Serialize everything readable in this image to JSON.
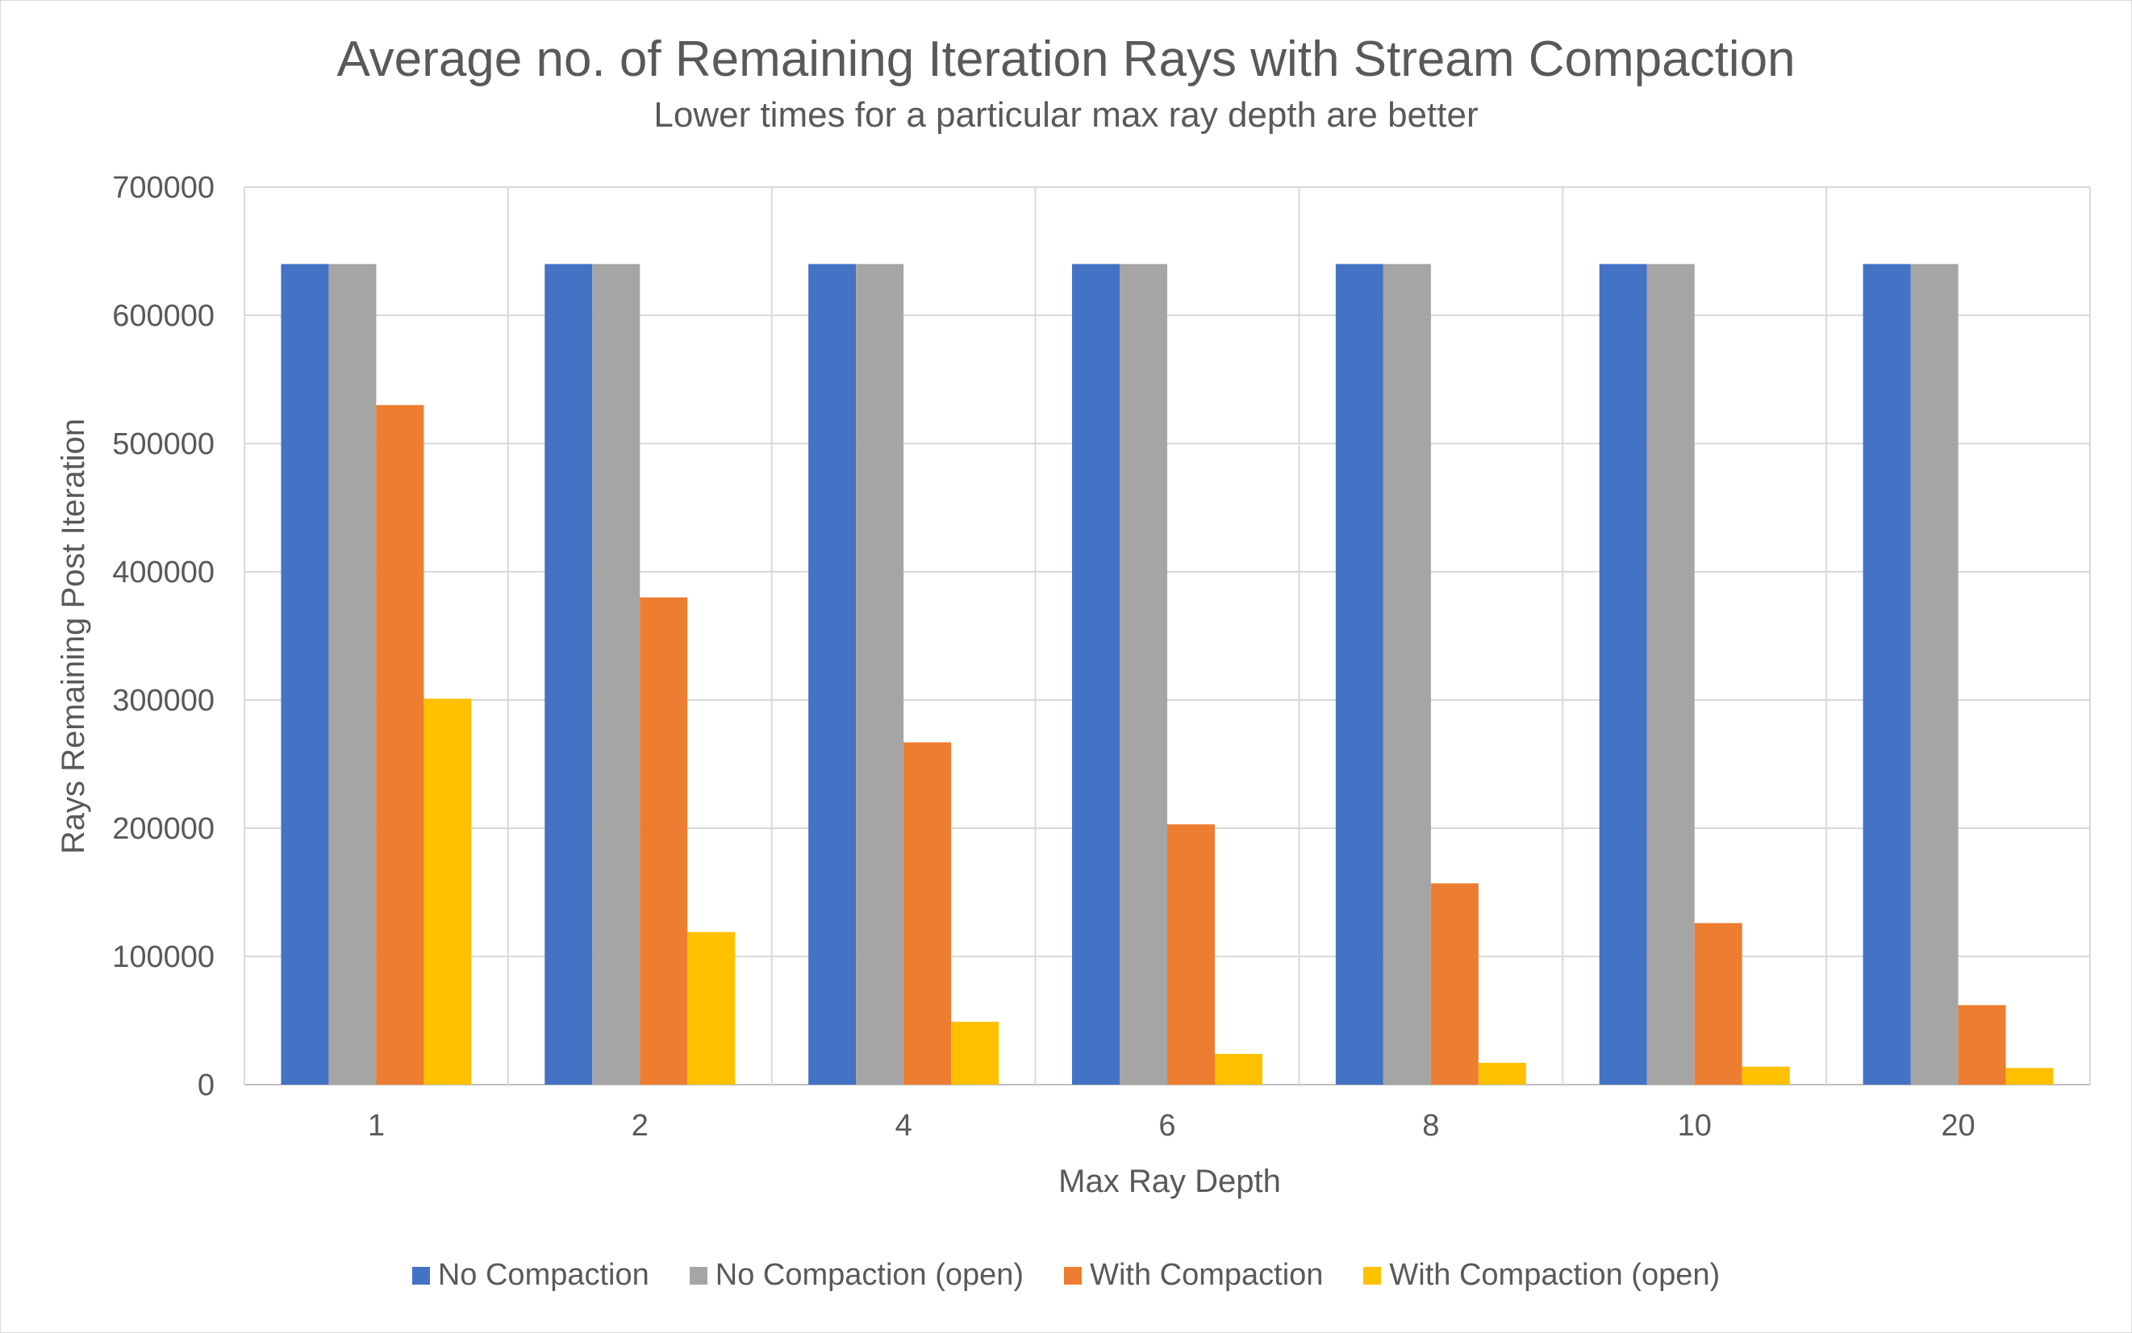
{
  "chart_data": {
    "type": "bar",
    "title": "Average no. of Remaining Iteration Rays with Stream Compaction",
    "subtitle": "Lower times for a particular max ray depth are better",
    "xlabel": "Max Ray Depth",
    "ylabel": "Rays Remaining Post Iteration",
    "ylim": [
      0,
      700000
    ],
    "yticks": [
      "0",
      "100000",
      "200000",
      "300000",
      "400000",
      "500000",
      "600000",
      "700000"
    ],
    "categories": [
      "1",
      "2",
      "4",
      "6",
      "8",
      "10",
      "20"
    ],
    "grid": true,
    "legend_position": "bottom",
    "series": [
      {
        "name": "No Compaction",
        "color": "#4472C4",
        "values": [
          640000,
          640000,
          640000,
          640000,
          640000,
          640000,
          640000
        ]
      },
      {
        "name": "No Compaction (open)",
        "color": "#A5A5A5",
        "values": [
          640000,
          640000,
          640000,
          640000,
          640000,
          640000,
          640000
        ]
      },
      {
        "name": "With Compaction",
        "color": "#ED7D31",
        "values": [
          530000,
          380000,
          267000,
          203000,
          157000,
          126000,
          62000
        ]
      },
      {
        "name": "With Compaction (open)",
        "color": "#FFC000",
        "values": [
          301000,
          119000,
          49000,
          24000,
          17000,
          14000,
          13000
        ]
      }
    ]
  }
}
